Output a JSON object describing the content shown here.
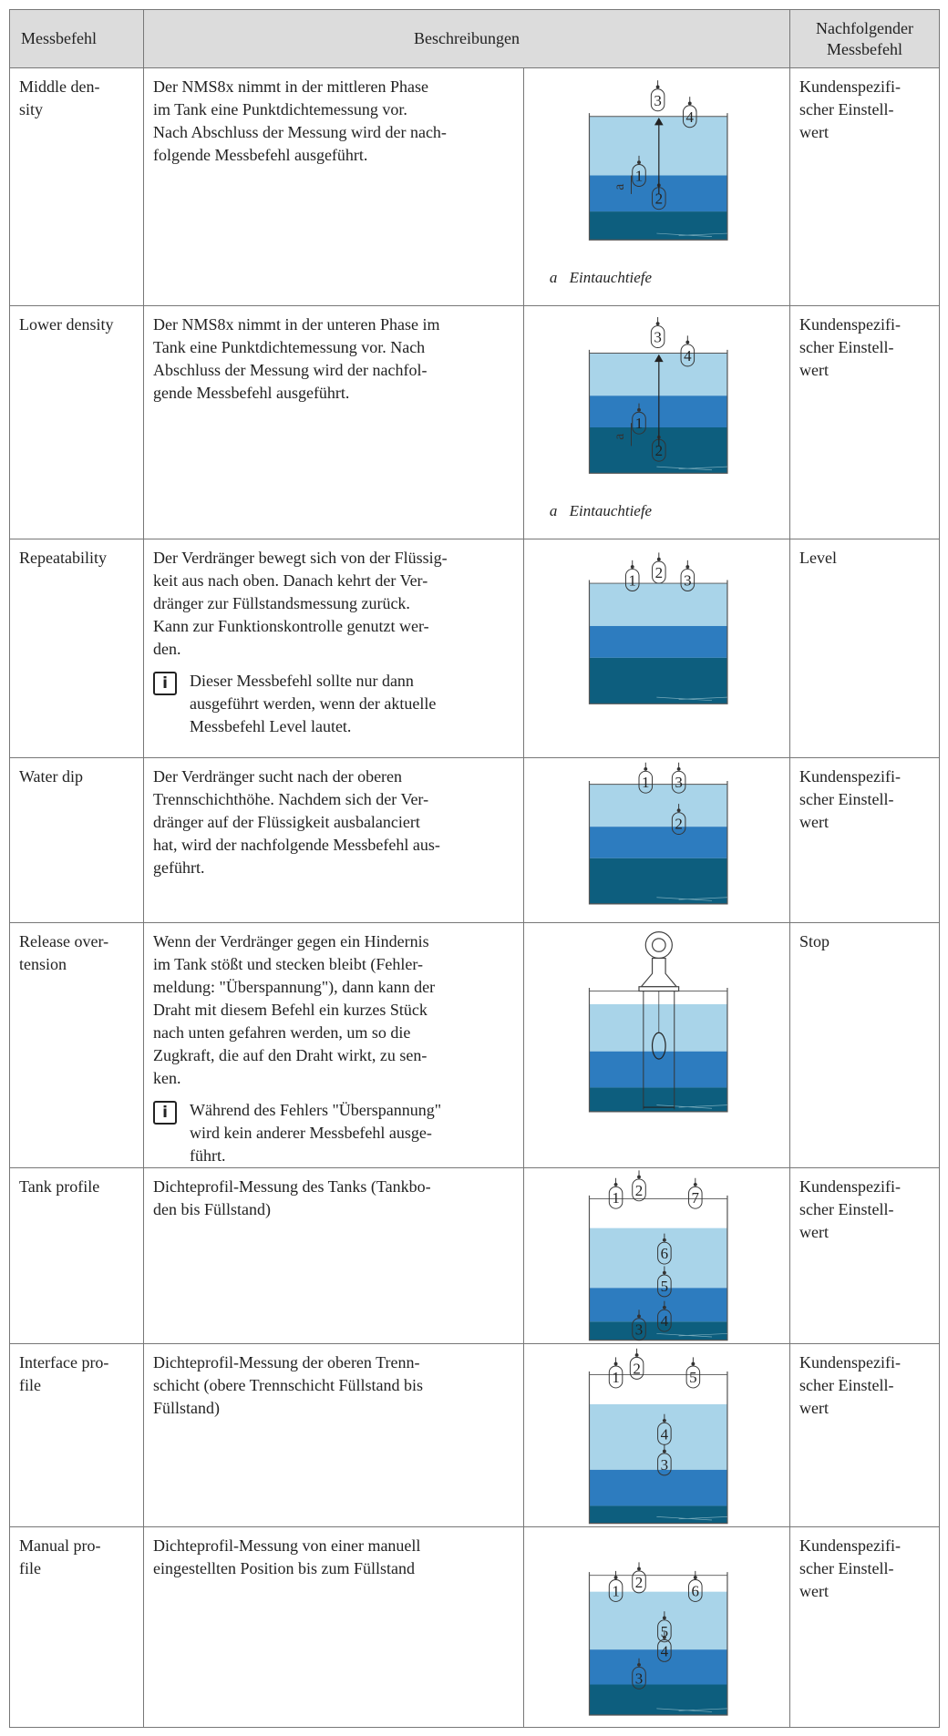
{
  "table": {
    "header": {
      "command": "Messbefehl",
      "description": "Beschreibungen",
      "next": [
        "Nachfolgender",
        "Messbefehl"
      ]
    },
    "rows": [
      {
        "command": [
          "Middle den-",
          "sity"
        ],
        "description": [
          "Der NMS8x nimmt in der mittleren Phase",
          "im Tank eine Punktdichtemessung vor.",
          "Nach Abschluss der Messung wird der nach-",
          "folgende Messbefehl ausgeführt."
        ],
        "diagram": {
          "markers": [
            "3",
            "4",
            "1",
            "2"
          ],
          "dimension": "a",
          "caption": {
            "key": "a",
            "text": "Eintauchtiefe"
          }
        },
        "next": [
          "Kundenspezifi-",
          "scher Einstell-",
          "wert"
        ]
      },
      {
        "command": [
          "Lower density"
        ],
        "description": [
          "Der NMS8x nimmt in der unteren Phase im",
          "Tank eine Punktdichtemessung vor. Nach",
          "Abschluss der Messung wird der nachfol-",
          "gende Messbefehl ausgeführt."
        ],
        "diagram": {
          "markers": [
            "3",
            "4",
            "1",
            "2"
          ],
          "dimension": "a",
          "caption": {
            "key": "a",
            "text": "Eintauchtiefe"
          }
        },
        "next": [
          "Kundenspezifi-",
          "scher Einstell-",
          "wert"
        ]
      },
      {
        "command": [
          "Repeatability"
        ],
        "description": [
          "Der Verdränger bewegt sich von der Flüssig-",
          "keit aus nach oben. Danach kehrt der Ver-",
          "dränger zur Füllstandsmessung zurück.",
          "Kann zur Funktionskontrolle genutzt wer-",
          "den."
        ],
        "note": {
          "icon": "i",
          "lines": [
            "Dieser Messbefehl sollte nur dann",
            "ausgeführt werden, wenn der aktuelle",
            "Messbefehl Level lautet."
          ]
        },
        "diagram": {
          "markers": [
            "1",
            "2",
            "3"
          ]
        },
        "next": [
          "Level"
        ]
      },
      {
        "command": [
          "Water dip"
        ],
        "description": [
          "Der Verdränger sucht nach der oberen",
          "Trennschichthöhe. Nachdem sich der Ver-",
          "dränger auf der Flüssigkeit ausbalanciert",
          "hat, wird der nachfolgende Messbefehl aus-",
          "geführt."
        ],
        "diagram": {
          "markers": [
            "1",
            "3",
            "2"
          ]
        },
        "next": [
          "Kundenspezifi-",
          "scher Einstell-",
          "wert"
        ]
      },
      {
        "command": [
          "Release over-",
          "tension"
        ],
        "description": [
          "Wenn der Verdränger gegen ein Hindernis",
          "im Tank stößt und stecken bleibt (Fehler-",
          "meldung: \"Überspannung\"), dann kann der",
          "Draht mit diesem Befehl ein kurzes Stück",
          "nach unten gefahren werden, um so die",
          "Zugkraft, die auf den Draht wirkt, zu sen-",
          "ken."
        ],
        "note": {
          "icon": "i",
          "lines": [
            "Während des Fehlers \"Überspannung\"",
            "wird kein anderer Messbefehl ausge-",
            "führt."
          ]
        },
        "diagram": {
          "markers": []
        },
        "next": [
          "Stop"
        ]
      },
      {
        "command": [
          "Tank profile"
        ],
        "description": [
          "Dichteprofil-Messung des Tanks (Tankbo-",
          "den bis Füllstand)"
        ],
        "diagram": {
          "markers": [
            "1",
            "2",
            "7",
            "6",
            "5",
            "3",
            "4"
          ]
        },
        "next": [
          "Kundenspezifi-",
          "scher Einstell-",
          "wert"
        ]
      },
      {
        "command": [
          "Interface pro-",
          "file"
        ],
        "description": [
          "Dichteprofil-Messung der oberen Trenn-",
          "schicht (obere Trennschicht Füllstand bis",
          "Füllstand)"
        ],
        "diagram": {
          "markers": [
            "1",
            "2",
            "5",
            "4",
            "3"
          ]
        },
        "next": [
          "Kundenspezifi-",
          "scher Einstell-",
          "wert"
        ]
      },
      {
        "command": [
          "Manual pro-",
          "file"
        ],
        "description": [
          "Dichteprofil-Messung von einer manuell",
          "eingestellten Position bis zum Füllstand"
        ],
        "diagram": {
          "markers": [
            "1",
            "2",
            "6",
            "5",
            "4",
            "3"
          ]
        },
        "next": [
          "Kundenspezifi-",
          "scher Einstell-",
          "wert"
        ]
      }
    ]
  }
}
